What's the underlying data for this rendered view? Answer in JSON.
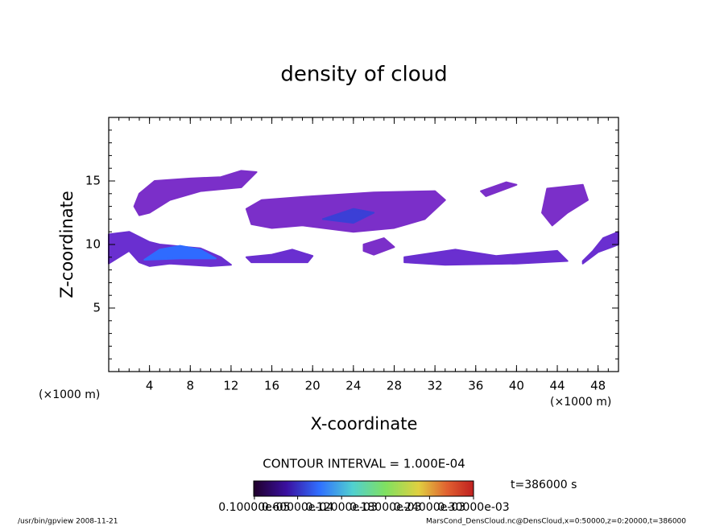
{
  "chart_data": {
    "type": "contour",
    "title": "density of cloud",
    "xlabel": "X-coordinate",
    "ylabel": "Z-coordinate",
    "x_unit_left": "(×1000 m)",
    "x_unit_right": "(×1000 m)",
    "xlim": [
      0,
      50
    ],
    "ylim": [
      0,
      20
    ],
    "xticks": [
      4,
      8,
      12,
      16,
      20,
      24,
      28,
      32,
      36,
      40,
      44,
      48
    ],
    "yticks": [
      5,
      10,
      15
    ],
    "regions": [
      {
        "color": "#7b2fc9",
        "x": [
          2.5,
          3,
          4.5,
          8,
          11,
          13,
          14.5,
          13,
          9,
          6,
          4,
          3
        ],
        "z": [
          13,
          14,
          15,
          15.2,
          15.3,
          15.8,
          15.7,
          14.5,
          14.2,
          13.5,
          12.5,
          12.3
        ]
      },
      {
        "color": "#7b2fc9",
        "x": [
          13.5,
          15,
          20,
          26,
          32,
          33,
          31,
          28,
          24,
          19,
          16,
          14
        ],
        "z": [
          12.8,
          13.5,
          13.8,
          14.1,
          14.2,
          13.5,
          12,
          11.3,
          11,
          11.5,
          11.3,
          11.6
        ]
      },
      {
        "color": "#7b2fc9",
        "x": [
          36.5,
          39,
          40,
          37
        ],
        "z": [
          14.2,
          14.9,
          14.7,
          13.8
        ]
      },
      {
        "color": "#7b2fc9",
        "x": [
          43,
          46.5,
          47,
          45,
          43.5,
          42.5
        ],
        "z": [
          14.4,
          14.7,
          13.5,
          12.5,
          11.5,
          12.5
        ]
      },
      {
        "color": "#6a2fd0",
        "x": [
          0,
          2,
          4,
          5,
          9,
          11,
          12,
          10,
          6,
          4,
          3,
          2,
          0
        ],
        "z": [
          10.8,
          11,
          10.2,
          10,
          9.7,
          9,
          8.4,
          8.3,
          8.5,
          8.3,
          8.6,
          9.5,
          8.5
        ]
      },
      {
        "color": "#6a2fd0",
        "x": [
          13.5,
          16,
          18,
          20,
          19.5,
          14
        ],
        "z": [
          9,
          9.2,
          9.6,
          9.1,
          8.6,
          8.6
        ]
      },
      {
        "color": "#7b2fc9",
        "x": [
          25,
          27,
          28,
          26,
          25
        ],
        "z": [
          10,
          10.5,
          9.8,
          9.2,
          9.5
        ]
      },
      {
        "color": "#6a2fd0",
        "x": [
          29,
          34,
          38,
          44,
          45,
          40,
          33,
          29
        ],
        "z": [
          9,
          9.6,
          9.1,
          9.5,
          8.7,
          8.5,
          8.4,
          8.6
        ]
      },
      {
        "color": "#6a2fd0",
        "x": [
          46.5,
          48,
          50,
          50,
          48.5,
          47.5,
          46.5
        ],
        "z": [
          8.5,
          9.4,
          10,
          11,
          10.5,
          9.5,
          8.7
        ]
      },
      {
        "color": "#2f6bff",
        "x": [
          3.5,
          5,
          7,
          9,
          10.5,
          7
        ],
        "z": [
          8.8,
          9.6,
          9.9,
          9.6,
          8.9,
          8.9
        ]
      },
      {
        "color": "#3b3fd6",
        "x": [
          21,
          24,
          26,
          24
        ],
        "z": [
          12,
          12.8,
          12.5,
          11.7
        ]
      }
    ],
    "contour_interval": "CONTOUR INTERVAL = 1.000E-04",
    "time_label": "t=386000 s",
    "colorbar_lim": [
      0,
      0.0003
    ],
    "colorbar_ticks": [
      {
        "value": 1e-06,
        "label": "0.10000e-05"
      },
      {
        "value": 6e-05,
        "label": "0.60000e-04"
      },
      {
        "value": 0.00012,
        "label": "0.12000e-03"
      },
      {
        "value": 0.00018,
        "label": "0.18000e-03"
      },
      {
        "value": 0.00024,
        "label": "0.24000e-03"
      },
      {
        "value": 0.0003,
        "label": "0.30000e-03"
      }
    ],
    "footer_left": "/usr/bin/gpview   2008-11-21",
    "footer_right": "MarsCond_DensCloud.nc@DensCloud,x=0:50000,z=0:20000,t=386000"
  }
}
